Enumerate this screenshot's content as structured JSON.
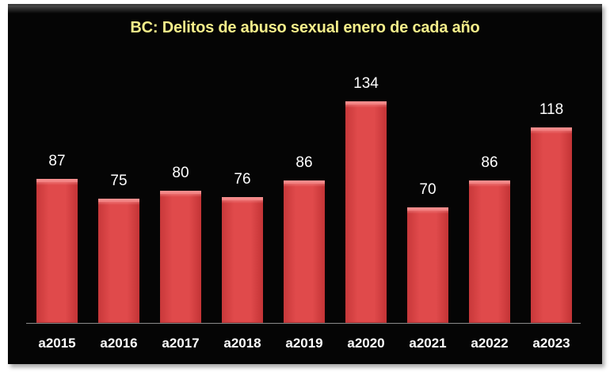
{
  "chart_data": {
    "type": "bar",
    "title": "BC: Delitos de abuso sexual enero de cada año",
    "xlabel": "",
    "ylabel": "",
    "categories": [
      "a2015",
      "a2016",
      "a2017",
      "a2018",
      "a2019",
      "a2020",
      "a2021",
      "a2022",
      "a2023"
    ],
    "values": [
      87,
      75,
      80,
      76,
      86,
      134,
      70,
      86,
      118
    ],
    "ylim": [
      0,
      134
    ],
    "grid": false,
    "legend": null,
    "data_labels": true,
    "colors": {
      "bar": "#e04a4b",
      "background": "#050505",
      "title": "#f5ee8a",
      "labels": "#ffffff"
    }
  },
  "labels": {
    "values": [
      "87",
      "75",
      "80",
      "76",
      "86",
      "134",
      "70",
      "86",
      "118"
    ]
  }
}
